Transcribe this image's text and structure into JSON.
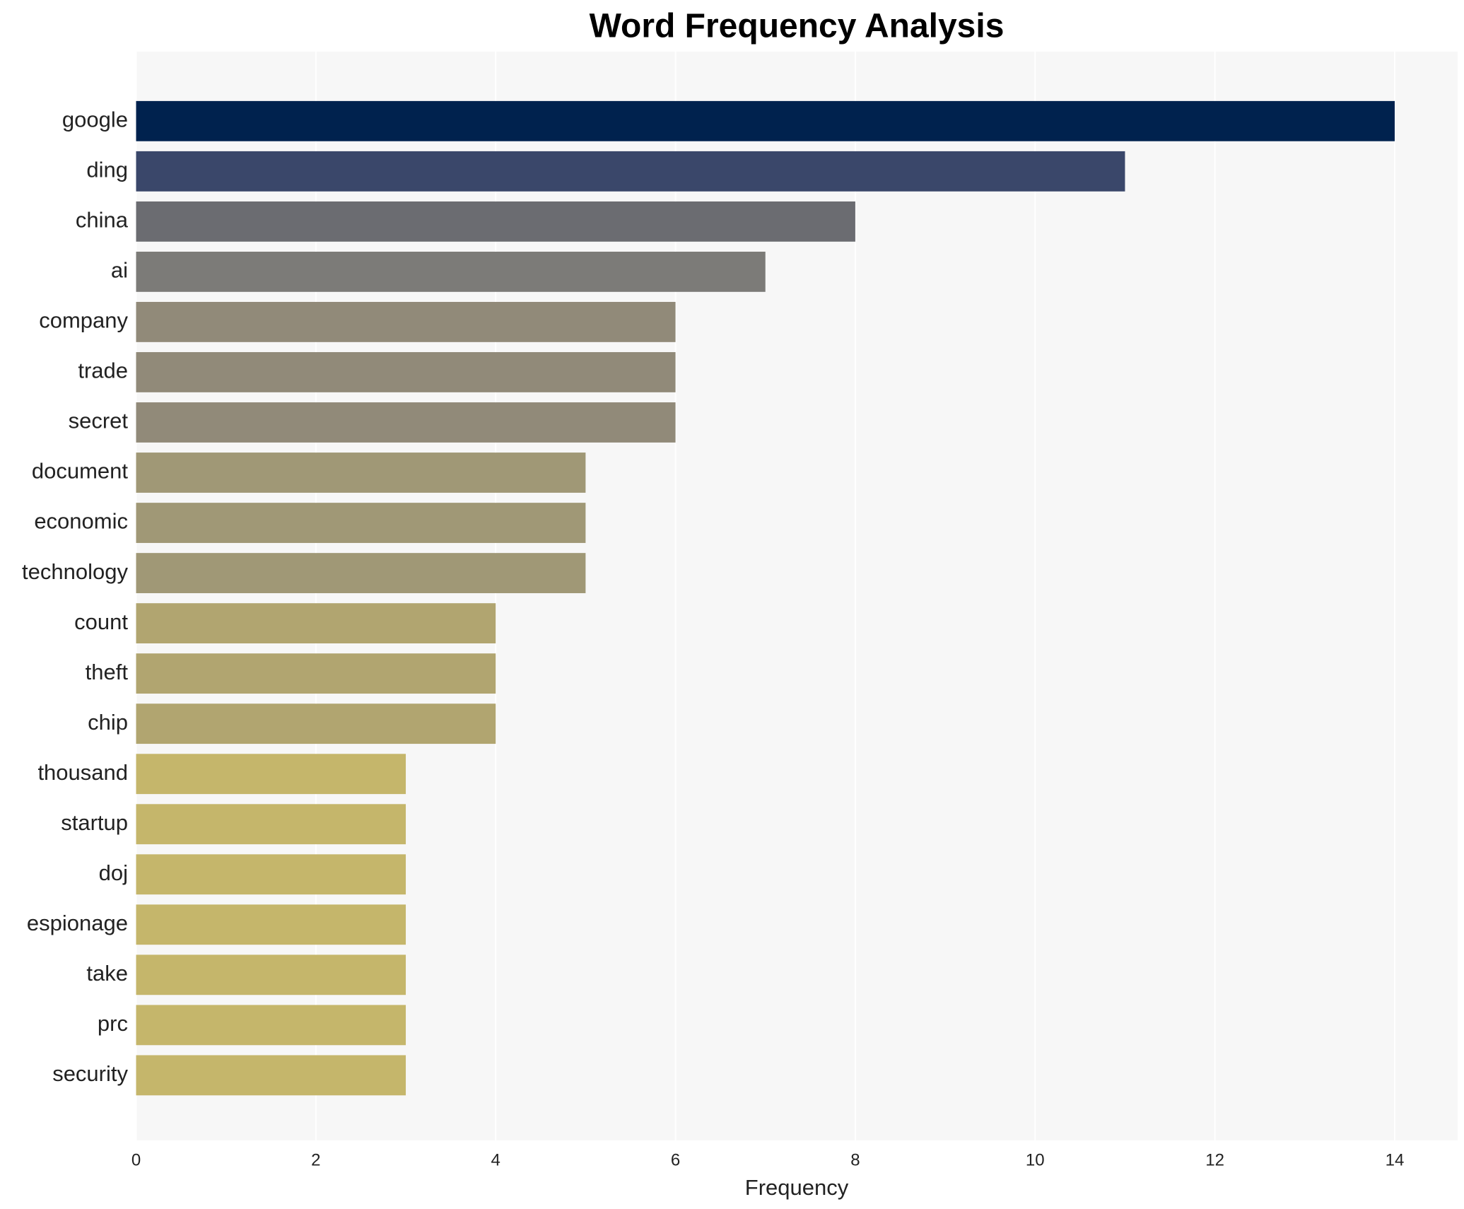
{
  "chart_data": {
    "type": "barh",
    "title": "Word Frequency Analysis",
    "x_label": "Frequency",
    "categories": [
      "google",
      "ding",
      "china",
      "ai",
      "company",
      "trade",
      "secret",
      "document",
      "economic",
      "technology",
      "count",
      "theft",
      "chip",
      "thousand",
      "startup",
      "doj",
      "espionage",
      "take",
      "prc",
      "security"
    ],
    "values": [
      14,
      11,
      8,
      7,
      6,
      6,
      6,
      5,
      5,
      5,
      4,
      4,
      4,
      3,
      3,
      3,
      3,
      3,
      3,
      3
    ],
    "colors": [
      "#00224e",
      "#3a476a",
      "#6b6c71",
      "#7c7b78",
      "#918a79",
      "#918a79",
      "#918a79",
      "#a09876",
      "#a09876",
      "#a09876",
      "#b1a570",
      "#b1a570",
      "#b1a570",
      "#c5b66b",
      "#c5b66b",
      "#c5b66b",
      "#c5b66b",
      "#c5b66b",
      "#c5b66b",
      "#c5b66b"
    ],
    "xlim": [
      0,
      14.7
    ],
    "xticks": [
      0,
      2,
      4,
      6,
      8,
      10,
      12,
      14
    ],
    "grid": true
  }
}
